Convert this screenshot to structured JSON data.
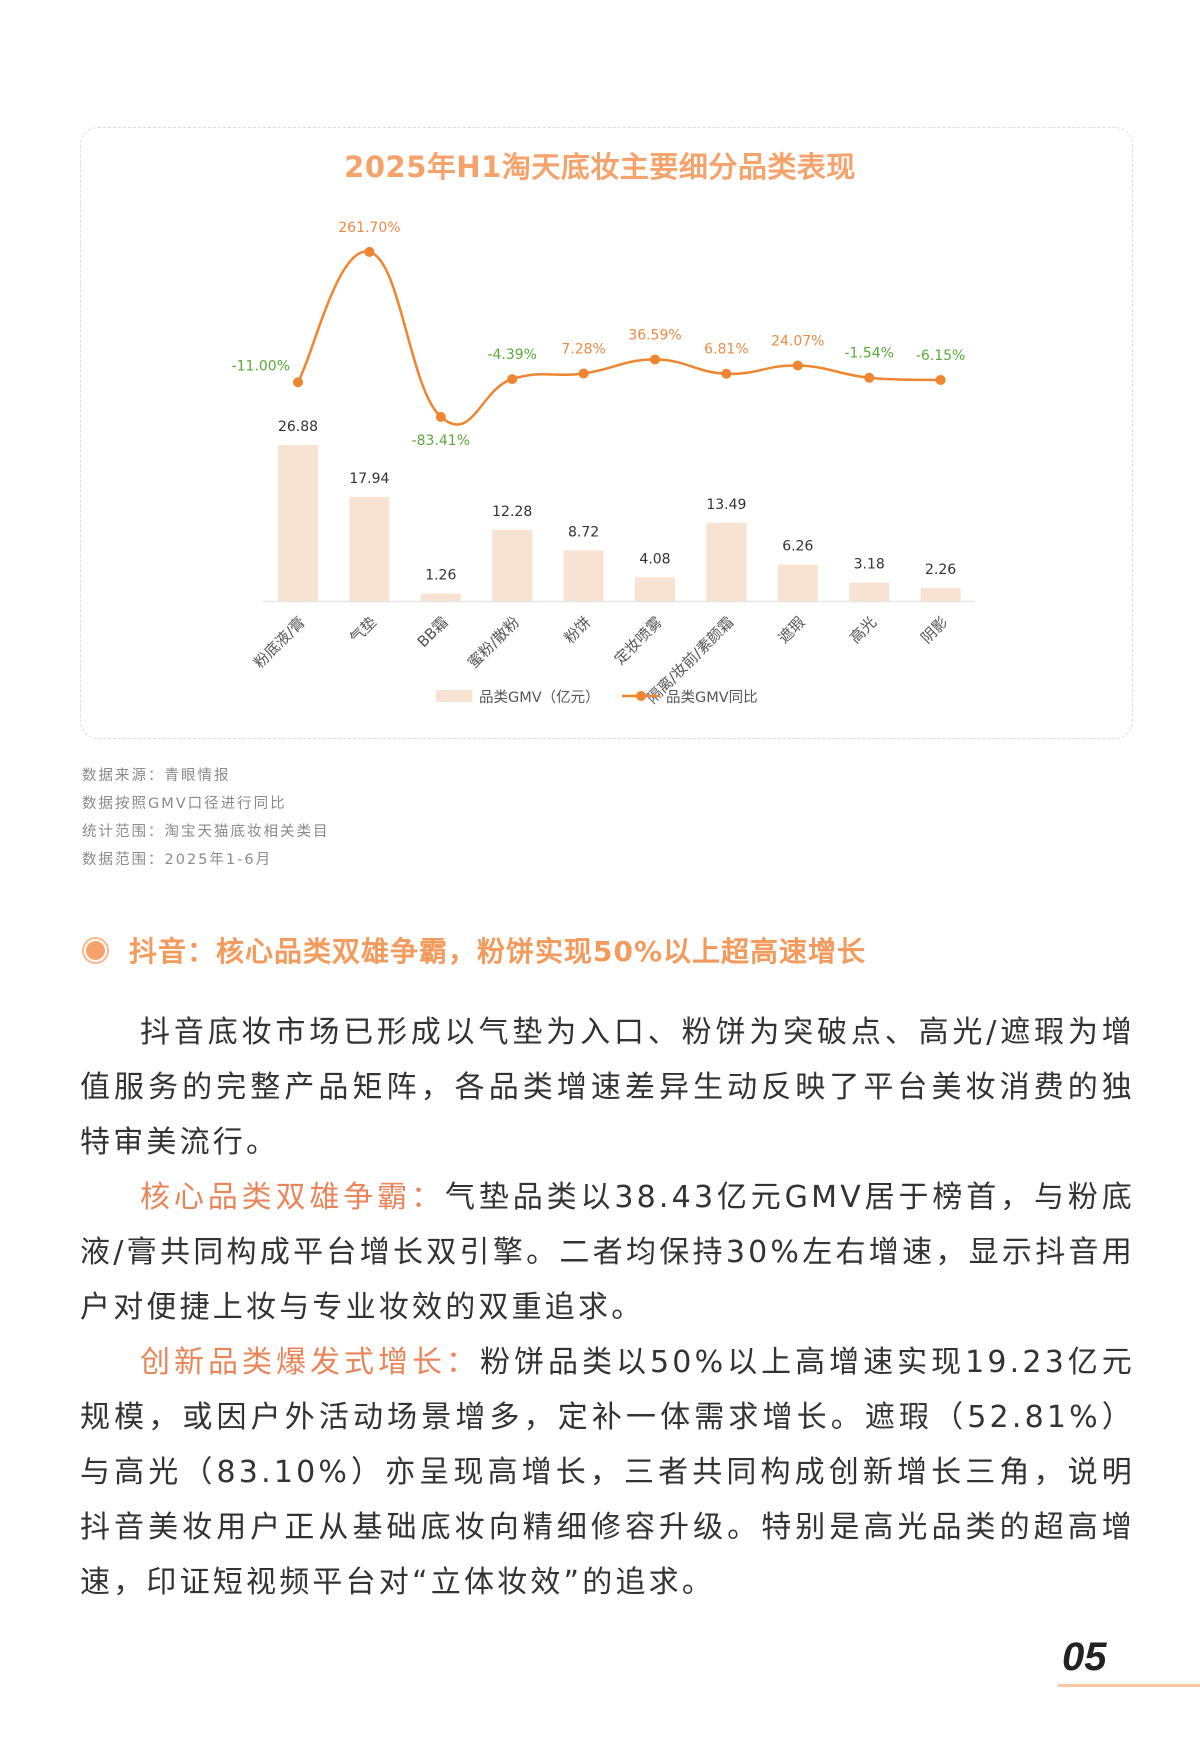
{
  "chart": {
    "title": "2025年H1淘天底妆主要细分品类表现",
    "legend": {
      "bar_label": "品类GMV（亿元）",
      "line_label": "品类GMV同比"
    },
    "colors": {
      "bar": "#f8e2d2",
      "line": "#ee8530",
      "positive_label": "#ee8a45",
      "negative_label": "#5aaa3a",
      "value_label": "#333333",
      "axis": "#e6e6e6",
      "category_label": "#555555",
      "title": "#f5a36b"
    }
  },
  "chart_data": {
    "type": "bar",
    "title": "2025年H1淘天底妆主要细分品类表现",
    "categories": [
      "粉底液/膏",
      "气垫",
      "BB霜",
      "蜜粉/散粉",
      "粉饼",
      "定妆喷雾",
      "隔离/妆前/素颜霜",
      "遮瑕",
      "高光",
      "阴影"
    ],
    "series": [
      {
        "name": "品类GMV（亿元）",
        "type": "bar",
        "axis": "left",
        "values": [
          26.88,
          17.94,
          1.26,
          12.28,
          8.72,
          4.08,
          13.49,
          6.26,
          3.18,
          2.26
        ]
      },
      {
        "name": "品类GMV同比",
        "type": "line",
        "axis": "right",
        "unit": "%",
        "values": [
          -11.0,
          261.7,
          -83.41,
          -4.39,
          7.28,
          36.59,
          6.81,
          24.07,
          -1.54,
          -6.15
        ],
        "labels": [
          "-11.00%",
          "261.70%",
          "-83.41%",
          "-4.39%",
          "7.28%",
          "36.59%",
          "6.81%",
          "24.07%",
          "-1.54%",
          "-6.15%"
        ]
      }
    ],
    "bar_labels": [
      "26.88",
      "17.94",
      "1.26",
      "12.28",
      "8.72",
      "4.08",
      "13.49",
      "6.26",
      "3.18",
      "2.26"
    ],
    "xlabel": "",
    "ylabel": "",
    "grid": false,
    "legend_position": "bottom",
    "x_tick_rotation": -45
  },
  "notes": [
    "数据来源：青眼情报",
    "数据按照GMV口径进行同比",
    "统计范围：淘宝天猫底妆相关类目",
    "数据范围：2025年1-6月"
  ],
  "section": {
    "title": "抖音：核心品类双雄争霸，粉饼实现50%以上超高速增长",
    "paragraphs": [
      {
        "highlight": "",
        "text": "抖音底妆市场已形成以气垫为入口、粉饼为突破点、高光/遮瑕为增值服务的完整产品矩阵，各品类增速差异生动反映了平台美妆消费的独特审美流行。"
      },
      {
        "highlight": "核心品类双雄争霸：",
        "text": "气垫品类以38.43亿元GMV居于榜首，与粉底液/膏共同构成平台增长双引擎。二者均保持30%左右增速，显示抖音用户对便捷上妆与专业妆效的双重追求。"
      },
      {
        "highlight": "创新品类爆发式增长：",
        "text": "粉饼品类以50%以上高增速实现19.23亿元规模，或因户外活动场景增多，定补一体需求增长。遮瑕（52.81%）与高光（83.10%）亦呈现高增长，三者共同构成创新增长三角，说明抖音美妆用户正从基础底妆向精细修容升级。特别是高光品类的超高增速，印证短视频平台对“立体妆效”的追求。"
      }
    ]
  },
  "page": {
    "number": "05"
  }
}
